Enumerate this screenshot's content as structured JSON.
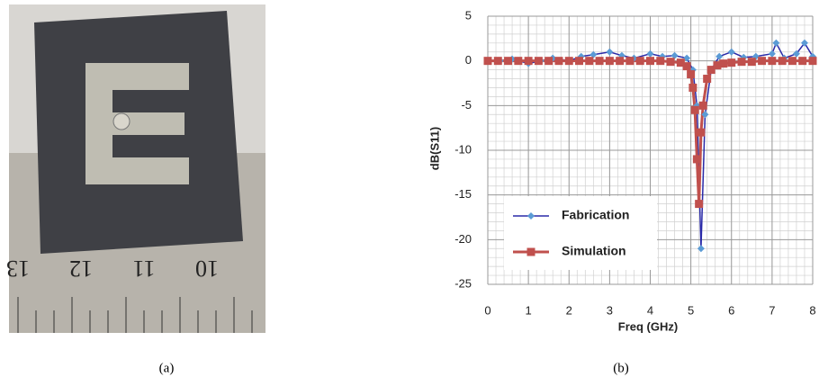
{
  "figure": {
    "captions": [
      "(a)",
      "(b)"
    ],
    "ruler_labels": [
      "13",
      "12",
      "11",
      "10"
    ]
  },
  "chart_data": {
    "type": "line",
    "x_label": "Freq (GHz)",
    "y_label": "dB(S11)",
    "xlim": [
      0,
      8
    ],
    "xticks": [
      0,
      1,
      2,
      3,
      4,
      5,
      6,
      7,
      8
    ],
    "ylim": [
      -25,
      5
    ],
    "yticks": [
      -25,
      -20,
      -15,
      -10,
      -5,
      0,
      5
    ],
    "grid": true,
    "legend": "lower-left",
    "series": [
      {
        "name": "Fabrication",
        "color": "#5b9bd5",
        "line_color": "#2a2aa8",
        "marker": "diamond",
        "x": [
          0,
          0.3,
          0.6,
          1,
          1.3,
          1.6,
          2,
          2.3,
          2.6,
          3,
          3.3,
          3.6,
          4,
          4.3,
          4.6,
          4.9,
          5.05,
          5.15,
          5.25,
          5.35,
          5.5,
          5.7,
          6,
          6.3,
          6.6,
          7,
          7.1,
          7.3,
          7.6,
          7.8,
          8
        ],
        "values": [
          0,
          0,
          0.2,
          -0.3,
          0,
          0.3,
          0,
          0.5,
          0.7,
          1,
          0.6,
          0.3,
          0.8,
          0.5,
          0.6,
          0.3,
          -1,
          -5,
          -21,
          -6,
          -1,
          0.5,
          1,
          0.4,
          0.5,
          0.8,
          2,
          0.3,
          0.8,
          2,
          0.5
        ]
      },
      {
        "name": "Simulation",
        "color": "#c0504d",
        "line_color": "#c0504d",
        "marker": "square",
        "x": [
          0,
          0.25,
          0.5,
          0.75,
          1,
          1.25,
          1.5,
          1.75,
          2,
          2.25,
          2.5,
          2.75,
          3,
          3.25,
          3.5,
          3.75,
          4,
          4.25,
          4.5,
          4.75,
          4.9,
          5.0,
          5.05,
          5.1,
          5.15,
          5.2,
          5.25,
          5.3,
          5.4,
          5.5,
          5.65,
          5.8,
          6,
          6.25,
          6.5,
          6.75,
          7,
          7.25,
          7.5,
          7.75,
          8
        ],
        "values": [
          0,
          0,
          0,
          0,
          0,
          0,
          0,
          0,
          0,
          0,
          0,
          0,
          0,
          0,
          0,
          0,
          0,
          0,
          -0.1,
          -0.2,
          -0.6,
          -1.5,
          -3,
          -5.5,
          -11,
          -16,
          -8,
          -5,
          -2,
          -1,
          -0.5,
          -0.3,
          -0.2,
          -0.1,
          -0.1,
          0,
          0,
          0,
          0,
          0,
          0
        ]
      }
    ]
  }
}
